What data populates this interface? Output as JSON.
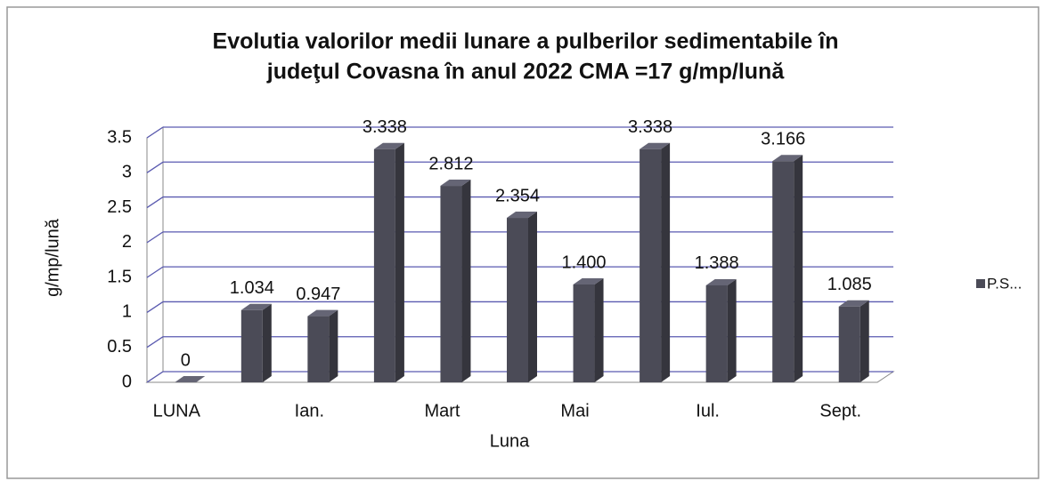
{
  "chart_data": {
    "type": "bar3d",
    "title": "Evolutia valorilor medii lunare a pulberilor sedimentabile în judeţul Covasna  în anul 2022   CMA =17 g/mp/lună",
    "x_label": "Luna",
    "y_label": "g/mp/lună",
    "categories": [
      "LUNA",
      null,
      "Ian.",
      null,
      "Mart",
      null,
      "Mai",
      null,
      "Iul.",
      null,
      "Sept."
    ],
    "series": [
      {
        "name": "P.S...",
        "color": "#4b4b57",
        "values": [
          0,
          1.034,
          0.947,
          3.338,
          2.812,
          2.354,
          1.4,
          3.338,
          1.388,
          3.166,
          1.085
        ],
        "value_labels": [
          "0",
          "1.034",
          "0.947",
          "3.338",
          "2.812",
          "2.354",
          "1.400",
          "3.338",
          "1.388",
          "3.166",
          "1.085"
        ]
      }
    ],
    "ylim": [
      0,
      3.5
    ],
    "yticks": [
      0,
      0.5,
      1,
      1.5,
      2,
      2.5,
      3,
      3.5
    ],
    "grid": true,
    "legend": "right"
  }
}
